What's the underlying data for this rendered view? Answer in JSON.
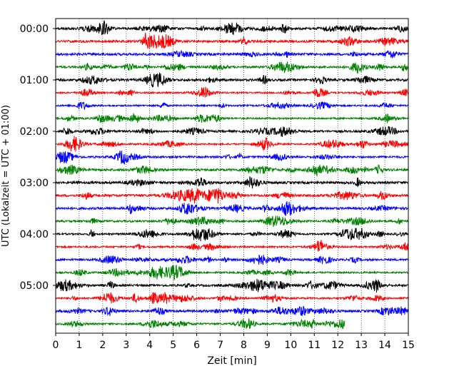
{
  "chart_data": {
    "type": "line",
    "title": "",
    "xlabel": "Zeit  [min]",
    "ylabel": "UTC (Lokalzeit = UTC + 01:00)",
    "xlim": [
      0,
      15
    ],
    "x_ticks": [
      "0",
      "1",
      "2",
      "3",
      "4",
      "5",
      "6",
      "7",
      "8",
      "9",
      "10",
      "11",
      "12",
      "13",
      "14",
      "15"
    ],
    "y_tick_labels": [
      "00:00",
      "01:00",
      "02:00",
      "03:00",
      "04:00",
      "05:00"
    ],
    "grid": "vertical dotted",
    "trace_interval_min": 15,
    "color_cycle": [
      "#000000",
      "#ff0000",
      "#0000ff",
      "#008000"
    ],
    "traces": [
      {
        "start": "00:00",
        "color": "#000000",
        "end_min": 15
      },
      {
        "start": "00:15",
        "color": "#ff0000",
        "end_min": 15
      },
      {
        "start": "00:30",
        "color": "#0000ff",
        "end_min": 15
      },
      {
        "start": "00:45",
        "color": "#008000",
        "end_min": 15
      },
      {
        "start": "01:00",
        "color": "#000000",
        "end_min": 15
      },
      {
        "start": "01:15",
        "color": "#ff0000",
        "end_min": 15
      },
      {
        "start": "01:30",
        "color": "#0000ff",
        "end_min": 15
      },
      {
        "start": "01:45",
        "color": "#008000",
        "end_min": 15
      },
      {
        "start": "02:00",
        "color": "#000000",
        "end_min": 15
      },
      {
        "start": "02:15",
        "color": "#ff0000",
        "end_min": 15
      },
      {
        "start": "02:30",
        "color": "#0000ff",
        "end_min": 15
      },
      {
        "start": "02:45",
        "color": "#008000",
        "end_min": 15
      },
      {
        "start": "03:00",
        "color": "#000000",
        "end_min": 15
      },
      {
        "start": "03:15",
        "color": "#ff0000",
        "end_min": 15
      },
      {
        "start": "03:30",
        "color": "#0000ff",
        "end_min": 15
      },
      {
        "start": "03:45",
        "color": "#008000",
        "end_min": 15
      },
      {
        "start": "04:00",
        "color": "#000000",
        "end_min": 15
      },
      {
        "start": "04:15",
        "color": "#ff0000",
        "end_min": 15
      },
      {
        "start": "04:30",
        "color": "#0000ff",
        "end_min": 15
      },
      {
        "start": "04:45",
        "color": "#008000",
        "end_min": 15
      },
      {
        "start": "05:00",
        "color": "#000000",
        "end_min": 15
      },
      {
        "start": "05:15",
        "color": "#ff0000",
        "end_min": 15
      },
      {
        "start": "05:30",
        "color": "#0000ff",
        "end_min": 15
      },
      {
        "start": "05:45",
        "color": "#008000",
        "end_min": 12.3
      }
    ]
  }
}
